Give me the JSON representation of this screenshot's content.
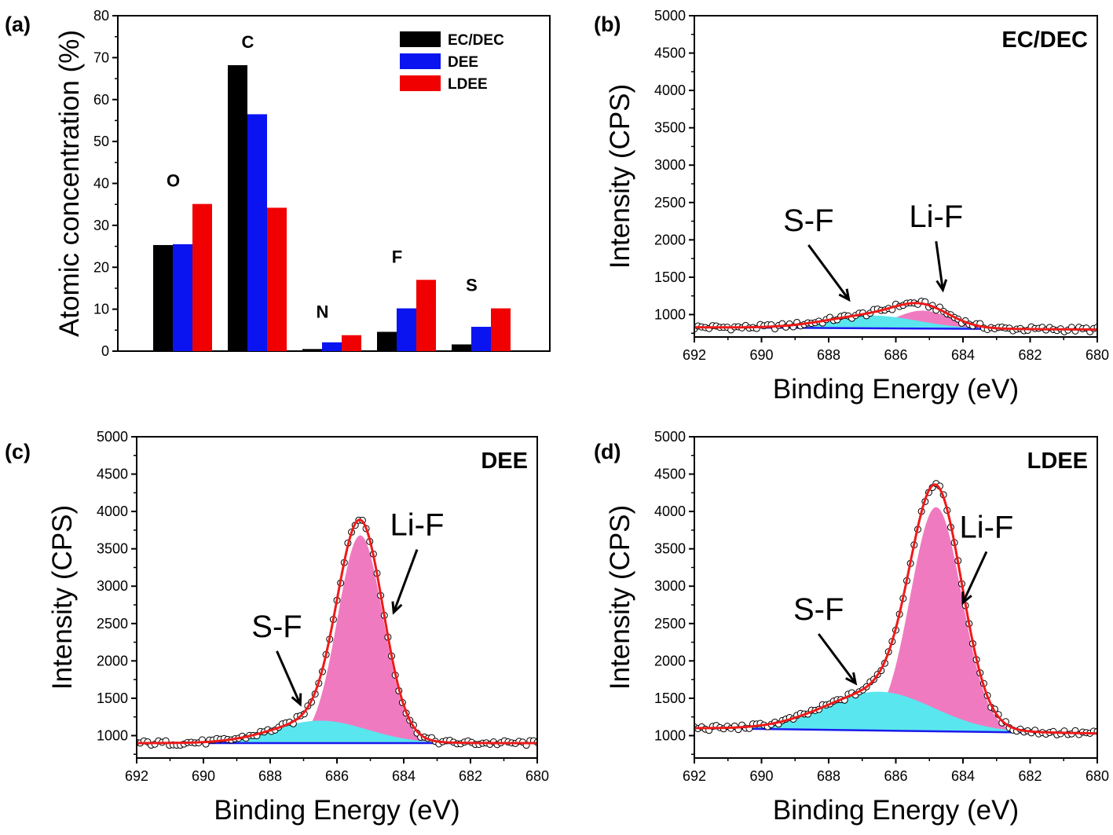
{
  "panel_labels": [
    "(a)",
    "(b)",
    "(c)",
    "(d)"
  ],
  "colors": {
    "ec_dec": "#000000",
    "dee": "#0a14f0",
    "ldee": "#f00000",
    "lif_fill": "#f07ac0",
    "sf_fill": "#5ae6ee",
    "baseline": "#1a1aee",
    "envelope": "#ee1a1a"
  },
  "chart_data": [
    {
      "type": "bar",
      "panel": "(a)",
      "categories": [
        "O",
        "C",
        "N",
        "F",
        "S"
      ],
      "series": [
        {
          "name": "EC/DEC",
          "values": [
            25.3,
            68.2,
            0.5,
            4.6,
            1.6
          ]
        },
        {
          "name": "DEE",
          "values": [
            25.5,
            56.5,
            2.1,
            10.2,
            5.8
          ]
        },
        {
          "name": "LDEE",
          "values": [
            35.1,
            34.2,
            3.8,
            17.0,
            10.2
          ]
        }
      ],
      "ylabel": "Atomic concentration (%)",
      "ylim": [
        0,
        80
      ],
      "yticks": [
        "0",
        "10",
        "20",
        "30",
        "40",
        "50",
        "60",
        "70",
        "80"
      ],
      "legend": "top-right",
      "grid": false
    },
    {
      "type": "line",
      "panel": "(b)",
      "title": "EC/DEC",
      "xlabel": "Binding Energy (eV)",
      "ylabel": "Intensity (CPS)",
      "xlim": [
        692,
        680
      ],
      "ylim": [
        700,
        5000
      ],
      "xticks": [
        "692",
        "690",
        "688",
        "686",
        "684",
        "682",
        "680"
      ],
      "yticks": [
        "1000",
        "1500",
        "2000",
        "2500",
        "3000",
        "3500",
        "4000",
        "4500",
        "5000"
      ],
      "baseline": [
        [
          692,
          830
        ],
        [
          680,
          800
        ]
      ],
      "peaks": [
        {
          "name": "S-F",
          "center": 686.7,
          "height": 170,
          "fwhm": 3.2
        },
        {
          "name": "Li-F",
          "center": 685.2,
          "height": 240,
          "fwhm": 1.9
        }
      ],
      "annotations": [
        {
          "text": "S-F",
          "x": 688.6,
          "y": 2120,
          "arrow_to": [
            687.4,
            1200
          ]
        },
        {
          "text": "Li-F",
          "x": 684.8,
          "y": 2170,
          "arrow_to": [
            684.6,
            1330
          ]
        }
      ],
      "grid": false
    },
    {
      "type": "line",
      "panel": "(c)",
      "title": "DEE",
      "xlabel": "Binding Energy (eV)",
      "ylabel": "Intensity (CPS)",
      "xlim": [
        692,
        680
      ],
      "ylim": [
        700,
        5000
      ],
      "xticks": [
        "692",
        "690",
        "688",
        "686",
        "684",
        "682",
        "680"
      ],
      "yticks": [
        "1000",
        "1500",
        "2000",
        "2500",
        "3000",
        "3500",
        "4000",
        "4500",
        "5000"
      ],
      "baseline": [
        [
          692,
          900
        ],
        [
          680,
          900
        ]
      ],
      "peaks": [
        {
          "name": "S-F",
          "center": 686.5,
          "height": 300,
          "fwhm": 3.3
        },
        {
          "name": "Li-F",
          "center": 685.3,
          "height": 2780,
          "fwhm": 1.6
        }
      ],
      "annotations": [
        {
          "text": "S-F",
          "x": 687.8,
          "y": 2320,
          "arrow_to": [
            687.1,
            1420
          ]
        },
        {
          "text": "Li-F",
          "x": 683.6,
          "y": 3680,
          "arrow_to": [
            684.3,
            2650
          ]
        }
      ],
      "grid": false
    },
    {
      "type": "line",
      "panel": "(d)",
      "title": "LDEE",
      "xlabel": "Binding Energy (eV)",
      "ylabel": "Intensity (CPS)",
      "xlim": [
        692,
        680
      ],
      "ylim": [
        700,
        5000
      ],
      "xticks": [
        "692",
        "690",
        "688",
        "686",
        "684",
        "682",
        "680"
      ],
      "yticks": [
        "1000",
        "1500",
        "2000",
        "2500",
        "3000",
        "3500",
        "4000",
        "4500",
        "5000"
      ],
      "baseline": [
        [
          692,
          1100
        ],
        [
          680,
          1030
        ]
      ],
      "peaks": [
        {
          "name": "S-F",
          "center": 686.5,
          "height": 520,
          "fwhm": 3.8
        },
        {
          "name": "Li-F",
          "center": 684.8,
          "height": 3000,
          "fwhm": 1.8
        }
      ],
      "annotations": [
        {
          "text": "S-F",
          "x": 688.3,
          "y": 2550,
          "arrow_to": [
            687.2,
            1700
          ]
        },
        {
          "text": "Li-F",
          "x": 683.3,
          "y": 3650,
          "arrow_to": [
            684.0,
            2780
          ]
        }
      ],
      "grid": false
    }
  ]
}
